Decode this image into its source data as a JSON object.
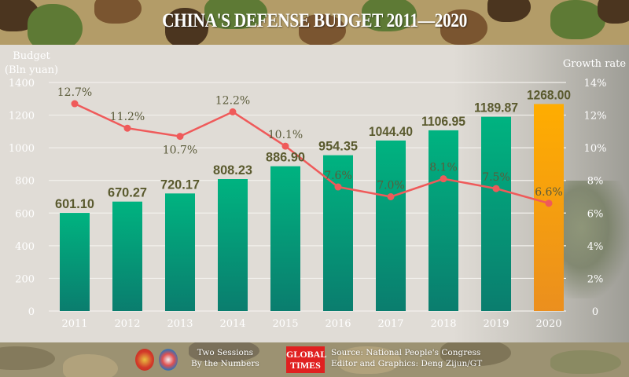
{
  "title": "CHINA'S DEFENSE BUDGET 2011—2020",
  "footer": {
    "event_line1": "Two Sessions",
    "event_line2": "By the Numbers",
    "logo_line1": "GLOBAL",
    "logo_line2": "TIMES",
    "source_line1": "Source: National People's Congress",
    "source_line2": "Editor and Graphics: Deng Zijun/GT"
  },
  "colors": {
    "bar": "#00b380",
    "bar_bottom": "#0a7d6e",
    "bar_highlight": "#ffad00",
    "bar_highlight_bottom": "#eb8f1e",
    "line": "#ef5a5a",
    "value_label": "#5a5a2e",
    "highlight_label": "#4a3a2a"
  },
  "chart_data": {
    "type": "bar+line",
    "title": "CHINA'S DEFENSE BUDGET 2011—2020",
    "categories": [
      "2011",
      "2012",
      "2013",
      "2014",
      "2015",
      "2016",
      "2017",
      "2018",
      "2019",
      "2020"
    ],
    "series": [
      {
        "name": "Budget",
        "type": "bar",
        "axis": "left",
        "values": [
          601.1,
          670.27,
          720.17,
          808.23,
          886.9,
          954.35,
          1044.4,
          1106.95,
          1189.87,
          1268.0
        ],
        "labels": [
          "601.10",
          "670.27",
          "720.17",
          "808.23",
          "886.90",
          "954.35",
          "1044.40",
          "1106.95",
          "1189.87",
          "1268.00"
        ],
        "highlight_index": 9
      },
      {
        "name": "Growth rate",
        "type": "line",
        "axis": "right",
        "values": [
          12.7,
          11.2,
          10.7,
          12.2,
          10.1,
          7.6,
          7.0,
          8.1,
          7.5,
          6.6
        ],
        "labels": [
          "12.7%",
          "11.2%",
          "10.7%",
          "12.2%",
          "10.1%",
          "7.6%",
          "7.0%",
          "8.1%",
          "7.5%",
          "6.6%"
        ],
        "label_pos": [
          "above",
          "above",
          "below",
          "above",
          "above",
          "above",
          "above",
          "above",
          "above",
          "above"
        ]
      }
    ],
    "ylabel_left_line1": "Budget",
    "ylabel_left_line2": "(Bln yuan)",
    "ylabel_right": "Growth rate",
    "ylim_left": [
      0,
      1400
    ],
    "ylim_right": [
      0,
      14
    ],
    "yticks_left": [
      "0",
      "200",
      "400",
      "600",
      "800",
      "1000",
      "1200",
      "1400"
    ],
    "yticks_right": [
      "0",
      "2%",
      "4%",
      "6%",
      "8%",
      "10%",
      "12%",
      "14%"
    ],
    "grid": true
  }
}
